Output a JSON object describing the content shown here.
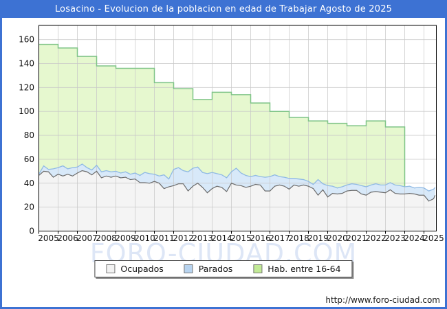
{
  "title": "Losacino - Evolucion de la poblacion en edad de Trabajar Agosto de 2025",
  "watermark": "FORO-CIUDAD.COM",
  "footer_url": "http://www.foro-ciudad.com",
  "colors": {
    "frame_blue": "#3d72d3",
    "hab_fill": "#e6f8cf",
    "hab_line": "#7fc487",
    "parados_fill": "#d8e9f9",
    "parados_line": "#8fb9e4",
    "ocupados_fill": "#f4f4f4",
    "ocupados_line": "#6b6b6b",
    "grid": "#c8c8c8",
    "axis": "#000000",
    "tick_label": "#111111",
    "watermark": "#dde6f6"
  },
  "legend": [
    {
      "label": "Ocupados",
      "fill": "#f2f2f2",
      "border": "#777777"
    },
    {
      "label": "Parados",
      "fill": "#b8d4f0",
      "border": "#777777"
    },
    {
      "label": "Hab. entre 16-64",
      "fill": "#c2ea96",
      "border": "#777777"
    }
  ],
  "chart_data": {
    "type": "area",
    "title": "Losacino - Evolucion de la poblacion en edad de Trabajar Agosto de 2025",
    "xlabel": "",
    "ylabel": "",
    "grid": true,
    "legend_position": "bottom",
    "xlim": [
      2005,
      2025.65
    ],
    "ylim": [
      0,
      171.5
    ],
    "x_ticks": [
      2005,
      2006,
      2007,
      2008,
      2009,
      2010,
      2011,
      2012,
      2013,
      2014,
      2015,
      2016,
      2017,
      2018,
      2019,
      2020,
      2021,
      2022,
      2023,
      2024,
      2025
    ],
    "y_ticks": [
      0,
      20,
      40,
      60,
      80,
      100,
      120,
      140,
      160
    ],
    "x": [
      2005,
      2005.25,
      2005.5,
      2005.75,
      2006,
      2006.25,
      2006.5,
      2006.75,
      2007,
      2007.25,
      2007.5,
      2007.75,
      2008,
      2008.25,
      2008.5,
      2008.75,
      2009,
      2009.25,
      2009.5,
      2009.75,
      2010,
      2010.25,
      2010.5,
      2010.75,
      2011,
      2011.25,
      2011.5,
      2011.75,
      2012,
      2012.25,
      2012.5,
      2012.75,
      2013,
      2013.25,
      2013.5,
      2013.75,
      2014,
      2014.25,
      2014.5,
      2014.75,
      2015,
      2015.25,
      2015.5,
      2015.75,
      2016,
      2016.25,
      2016.5,
      2016.75,
      2017,
      2017.25,
      2017.5,
      2017.75,
      2018,
      2018.25,
      2018.5,
      2018.75,
      2019,
      2019.25,
      2019.5,
      2019.75,
      2020,
      2020.25,
      2020.5,
      2020.75,
      2021,
      2021.25,
      2021.5,
      2021.75,
      2022,
      2022.25,
      2022.5,
      2022.75,
      2023,
      2023.25,
      2023.5,
      2023.75,
      2024,
      2024.25,
      2024.5,
      2024.75,
      2025,
      2025.25,
      2025.5,
      2025.58
    ],
    "series": [
      {
        "name": "Ocupados",
        "stacking": "base",
        "values": [
          46.5,
          50,
          49.5,
          45,
          47.5,
          46,
          47.5,
          46,
          48.5,
          50.5,
          49.5,
          47,
          50,
          44.5,
          46,
          45,
          46,
          44.5,
          45,
          43,
          43.5,
          40.5,
          40.5,
          40,
          41.5,
          40,
          35.5,
          37,
          38,
          39.5,
          39.5,
          33.5,
          37.5,
          40,
          36.5,
          32,
          35.5,
          37.5,
          36.5,
          33,
          40,
          38.5,
          38,
          36.5,
          37.5,
          39,
          38.5,
          33.5,
          33.5,
          37.5,
          38.5,
          37.5,
          35,
          38.5,
          37.5,
          38.5,
          37.5,
          35.5,
          30,
          34.5,
          28.5,
          31.5,
          31,
          31.5,
          33.5,
          34,
          34,
          31,
          30,
          32.5,
          33,
          32.5,
          32,
          34.5,
          31.5,
          31,
          31,
          31.5,
          31,
          30,
          30,
          25,
          27,
          30
        ]
      },
      {
        "name": "Parados",
        "stacking": "on Ocupados",
        "values": [
          1,
          4.5,
          2,
          7,
          5.5,
          8.5,
          4.5,
          7,
          5,
          5.5,
          3.5,
          4,
          5,
          5,
          4.5,
          4.5,
          4,
          4,
          4.5,
          4.5,
          5,
          6,
          8.5,
          8,
          6,
          6,
          11.5,
          6.5,
          13.5,
          13.5,
          11,
          16,
          15,
          13.5,
          12.5,
          16,
          13.5,
          10.5,
          10.5,
          11.5,
          9.5,
          14,
          10.5,
          10,
          8,
          7.5,
          7,
          11.5,
          12,
          9.5,
          7,
          7.5,
          9,
          5.5,
          6,
          4.5,
          4,
          3.5,
          13,
          5,
          9.5,
          6,
          5,
          5.5,
          5,
          5.5,
          5,
          7,
          7,
          6,
          6.5,
          6,
          6.5,
          6,
          7,
          7,
          6,
          6,
          5,
          6.5,
          6,
          8.5,
          8,
          6.5
        ]
      },
      {
        "name": "Hab. entre 16-64",
        "type": "step-yearly",
        "years": [
          2005,
          2006,
          2007,
          2008,
          2009,
          2010,
          2011,
          2012,
          2013,
          2014,
          2015,
          2016,
          2017,
          2018,
          2019,
          2020,
          2021,
          2022,
          2023
        ],
        "values": [
          156,
          153,
          146,
          138,
          136,
          136,
          124,
          119,
          110,
          116,
          114,
          107,
          100,
          95,
          92,
          90,
          88,
          92,
          87
        ],
        "end_x": 2024
      }
    ]
  }
}
